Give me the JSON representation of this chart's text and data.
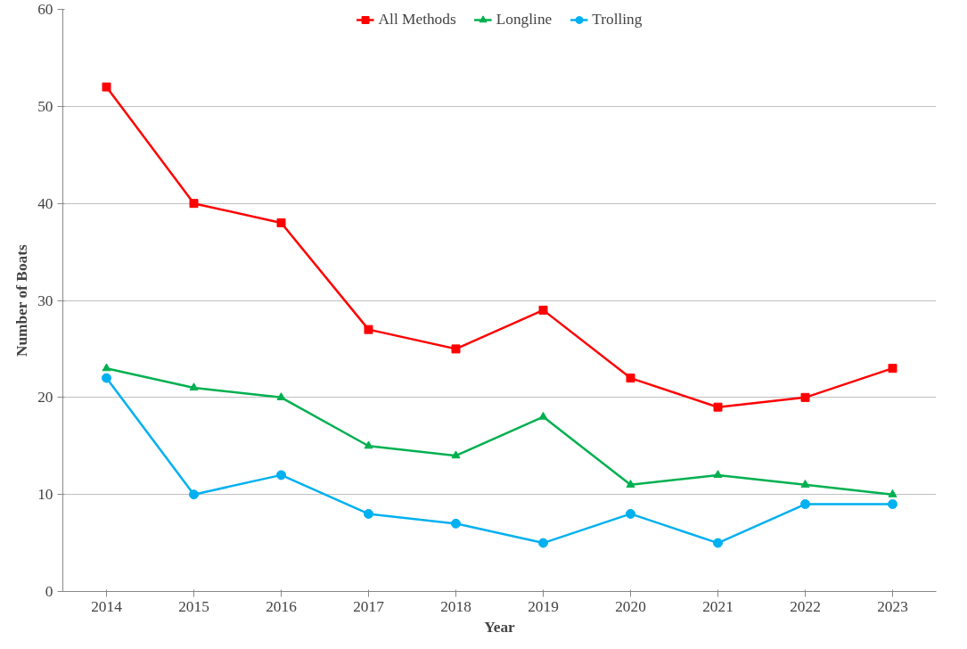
{
  "chart_data": {
    "type": "line",
    "xlabel": "Year",
    "ylabel": "Number of Boats",
    "categories": [
      "2014",
      "2015",
      "2016",
      "2017",
      "2018",
      "2019",
      "2020",
      "2021",
      "2022",
      "2023"
    ],
    "series": [
      {
        "name": "All Methods",
        "color": "#ff0000",
        "marker": "square",
        "values": [
          52,
          40,
          38,
          27,
          25,
          29,
          22,
          19,
          20,
          23
        ]
      },
      {
        "name": "Longline",
        "color": "#00b050",
        "marker": "triangle",
        "values": [
          23,
          21,
          20,
          15,
          14,
          18,
          11,
          12,
          11,
          10
        ]
      },
      {
        "name": "Trolling",
        "color": "#00b0f0",
        "marker": "circle",
        "values": [
          22,
          10,
          12,
          8,
          7,
          5,
          8,
          5,
          9,
          9
        ]
      }
    ],
    "ylim": [
      0,
      60
    ],
    "yticks": [
      0,
      10,
      20,
      30,
      40,
      50,
      60
    ],
    "grid": "y",
    "legend": "top",
    "line_style": "solid"
  }
}
